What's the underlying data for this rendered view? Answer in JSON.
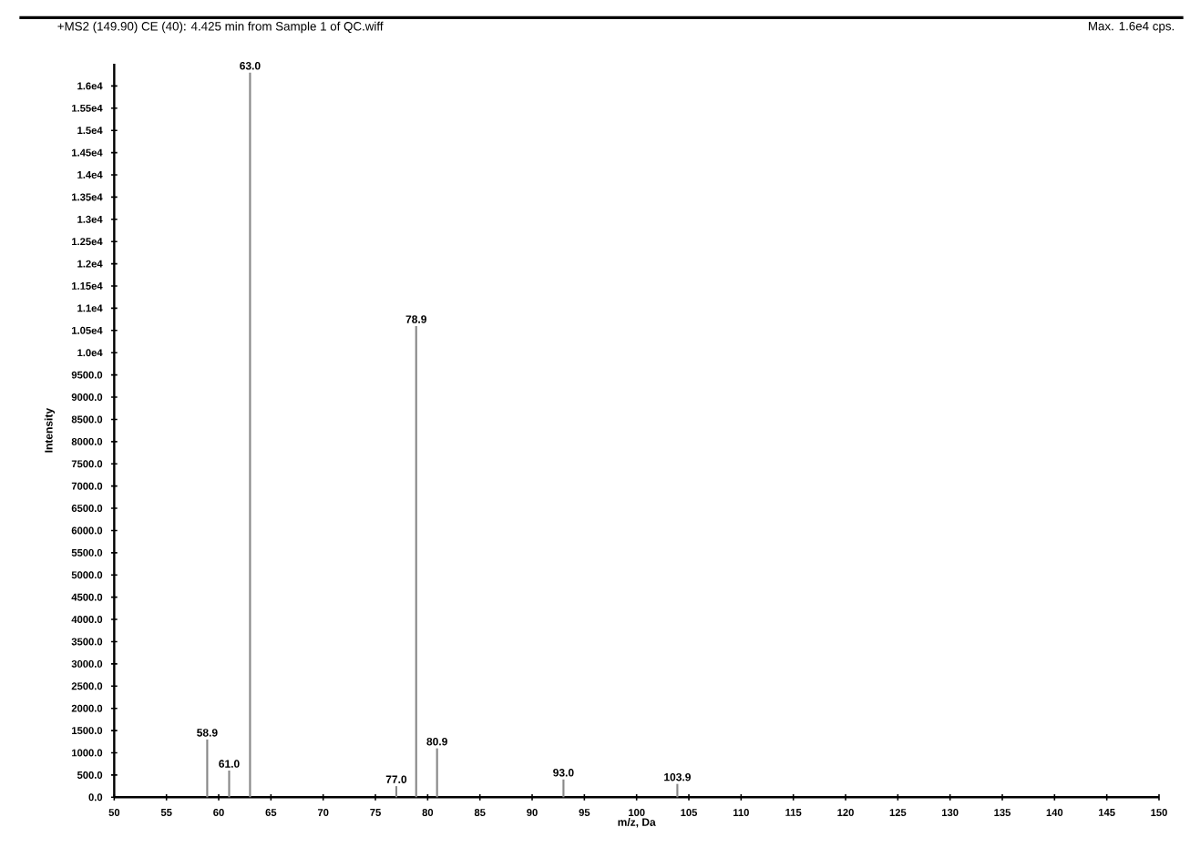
{
  "chart_data": {
    "type": "bar",
    "title": "+MS2 (149.90) CE (40): 4.425 min from Sample 1 of QC.wiff",
    "subtitle": "Max. 1.6e4 cps.",
    "xlabel": "m/z, Da",
    "ylabel": "Intensity",
    "x": [
      58.9,
      61.0,
      63.0,
      77.0,
      78.9,
      80.9,
      93.0,
      103.9
    ],
    "values": [
      1300,
      600,
      16300,
      250,
      10600,
      1100,
      400,
      300
    ],
    "color": "#888888",
    "annotations": [
      {
        "text": "58.9",
        "x": 58.9,
        "y": 1300
      },
      {
        "text": "61.0",
        "x": 61.0,
        "y": 600
      },
      {
        "text": "63.0",
        "x": 63.0,
        "y": 16300
      },
      {
        "text": "77.0",
        "x": 77.0,
        "y": 250
      },
      {
        "text": "78.9",
        "x": 78.9,
        "y": 10600
      },
      {
        "text": "80.9",
        "x": 80.9,
        "y": 1100
      },
      {
        "text": "93.0",
        "x": 93.0,
        "y": 400
      },
      {
        "text": "103.9",
        "x": 103.9,
        "y": 300
      }
    ],
    "xlim": [
      50,
      150
    ],
    "xticks": [
      50,
      55,
      60,
      65,
      70,
      75,
      80,
      85,
      90,
      95,
      100,
      105,
      110,
      115,
      120,
      125,
      130,
      135,
      140,
      145,
      150
    ],
    "ylim": [
      0,
      16500
    ],
    "yticks": [
      {
        "value": 0,
        "label": "0.0"
      },
      {
        "value": 500,
        "label": "500.0"
      },
      {
        "value": 1000,
        "label": "1000.0"
      },
      {
        "value": 1500,
        "label": "1500.0"
      },
      {
        "value": 2000,
        "label": "2000.0"
      },
      {
        "value": 2500,
        "label": "2500.0"
      },
      {
        "value": 3000,
        "label": "3000.0"
      },
      {
        "value": 3500,
        "label": "3500.0"
      },
      {
        "value": 4000,
        "label": "4000.0"
      },
      {
        "value": 4500,
        "label": "4500.0"
      },
      {
        "value": 5000,
        "label": "5000.0"
      },
      {
        "value": 5500,
        "label": "5500.0"
      },
      {
        "value": 6000,
        "label": "6000.0"
      },
      {
        "value": 6500,
        "label": "6500.0"
      },
      {
        "value": 7000,
        "label": "7000.0"
      },
      {
        "value": 7500,
        "label": "7500.0"
      },
      {
        "value": 8000,
        "label": "8000.0"
      },
      {
        "value": 8500,
        "label": "8500.0"
      },
      {
        "value": 9000,
        "label": "9000.0"
      },
      {
        "value": 9500,
        "label": "9500.0"
      },
      {
        "value": 10000,
        "label": "1.0e4"
      },
      {
        "value": 10500,
        "label": "1.05e4"
      },
      {
        "value": 11000,
        "label": "1.1e4"
      },
      {
        "value": 11500,
        "label": "1.15e4"
      },
      {
        "value": 12000,
        "label": "1.2e4"
      },
      {
        "value": 12500,
        "label": "1.25e4"
      },
      {
        "value": 13000,
        "label": "1.3e4"
      },
      {
        "value": 13500,
        "label": "1.35e4"
      },
      {
        "value": 14000,
        "label": "1.4e4"
      },
      {
        "value": 14500,
        "label": "1.45e4"
      },
      {
        "value": 15000,
        "label": "1.5e4"
      },
      {
        "value": 15500,
        "label": "1.55e4"
      },
      {
        "value": 16000,
        "label": "1.6e4"
      }
    ],
    "grid": false
  }
}
